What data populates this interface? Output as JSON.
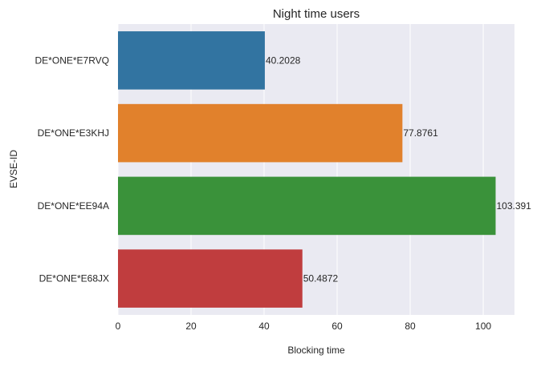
{
  "chart_data": {
    "type": "bar",
    "orientation": "horizontal",
    "title": "Night time users",
    "xlabel": "Blocking time",
    "ylabel": "EVSE-ID",
    "categories": [
      "DE*ONE*E7RVQ",
      "DE*ONE*E3KHJ",
      "DE*ONE*EE94A",
      "DE*ONE*E68JX"
    ],
    "values": [
      40.2028,
      77.8761,
      103.391,
      50.4872
    ],
    "value_labels": [
      "40.2028",
      "77.8761",
      "103.391",
      "50.4872"
    ],
    "colors": [
      "#3274a1",
      "#e1812c",
      "#3a923a",
      "#c03d3e"
    ],
    "xlim": [
      0,
      108.56
    ],
    "xticks": [
      0,
      20,
      40,
      60,
      80,
      100
    ],
    "grid": true,
    "background": "#eaeaf2"
  }
}
